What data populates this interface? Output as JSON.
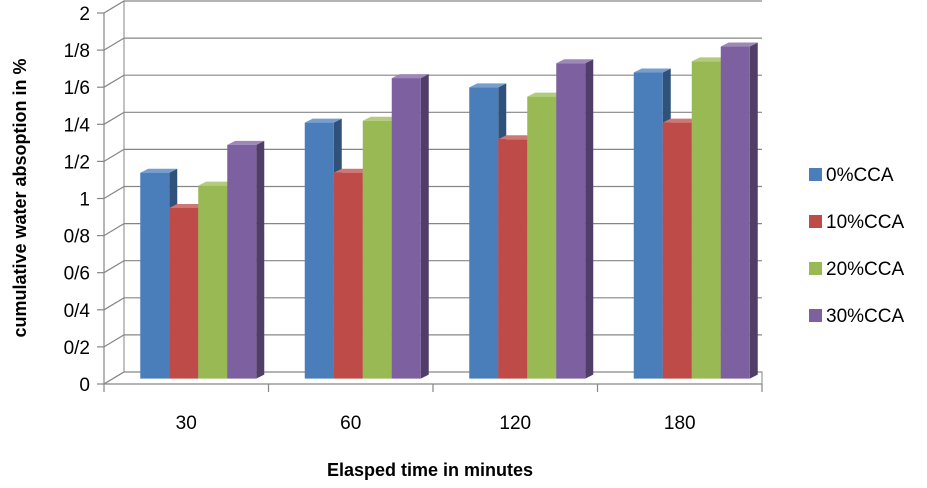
{
  "chart_data": {
    "type": "bar",
    "title": "",
    "xlabel": "Elasped time in minutes",
    "ylabel": "cumulative water absoption in %",
    "categories": [
      "30",
      "60",
      "120",
      "180"
    ],
    "y_tick_labels": [
      "0",
      "0/2",
      "0/4",
      "0/6",
      "0/8",
      "1",
      "1/2",
      "1/4",
      "1/6",
      "1/8",
      "2"
    ],
    "ylim": [
      0,
      2
    ],
    "grid": true,
    "legend_position": "right",
    "series": [
      {
        "name": "0%CCA",
        "color": "#4a7ebb",
        "values": [
          1.11,
          1.38,
          1.57,
          1.65
        ]
      },
      {
        "name": "10%CCA",
        "color": "#be4b48",
        "values": [
          0.92,
          1.11,
          1.29,
          1.38
        ]
      },
      {
        "name": "20%CCA",
        "color": "#98b954",
        "values": [
          1.04,
          1.39,
          1.52,
          1.71
        ]
      },
      {
        "name": "30%CCA",
        "color": "#7d60a0",
        "values": [
          1.26,
          1.62,
          1.7,
          1.79
        ]
      }
    ]
  }
}
